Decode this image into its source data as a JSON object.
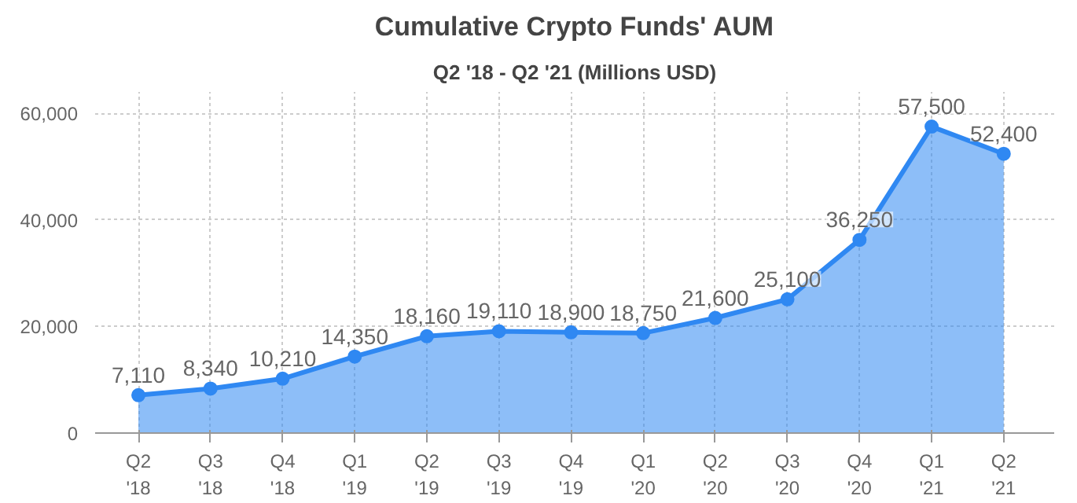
{
  "chart_data": {
    "type": "area",
    "title": "Cumulative Crypto Funds' AUM",
    "subtitle": "Q2 '18 - Q2 '21 (Millions USD)",
    "categories": [
      "Q2\n'18",
      "Q3\n'18",
      "Q4\n'18",
      "Q1\n'19",
      "Q2\n'19",
      "Q3\n'19",
      "Q4\n'19",
      "Q1\n'20",
      "Q2\n'20",
      "Q3\n'20",
      "Q4\n'20",
      "Q1\n'21",
      "Q2\n'21"
    ],
    "series": [
      {
        "color": "#2f88f2",
        "values": [
          7110,
          8340,
          10210,
          14350,
          18160,
          19110,
          18900,
          18750,
          21600,
          25100,
          36250,
          57500,
          52400
        ],
        "value_labels": [
          "7,110",
          "8,340",
          "10,210",
          "14,350",
          "18,160",
          "19,110",
          "18,900",
          "18,750",
          "21,600",
          "25,100",
          "36,250",
          "57,500",
          "52,400"
        ]
      }
    ],
    "ylim": [
      0,
      64000
    ],
    "yticks": [
      0,
      {
        "value": 20000,
        "label": "20,000"
      },
      {
        "value": 40000,
        "label": "40,000"
      },
      {
        "value": 60000,
        "label": "60,000"
      }
    ],
    "grid": true,
    "marker": "circle",
    "line_style": "solid"
  }
}
